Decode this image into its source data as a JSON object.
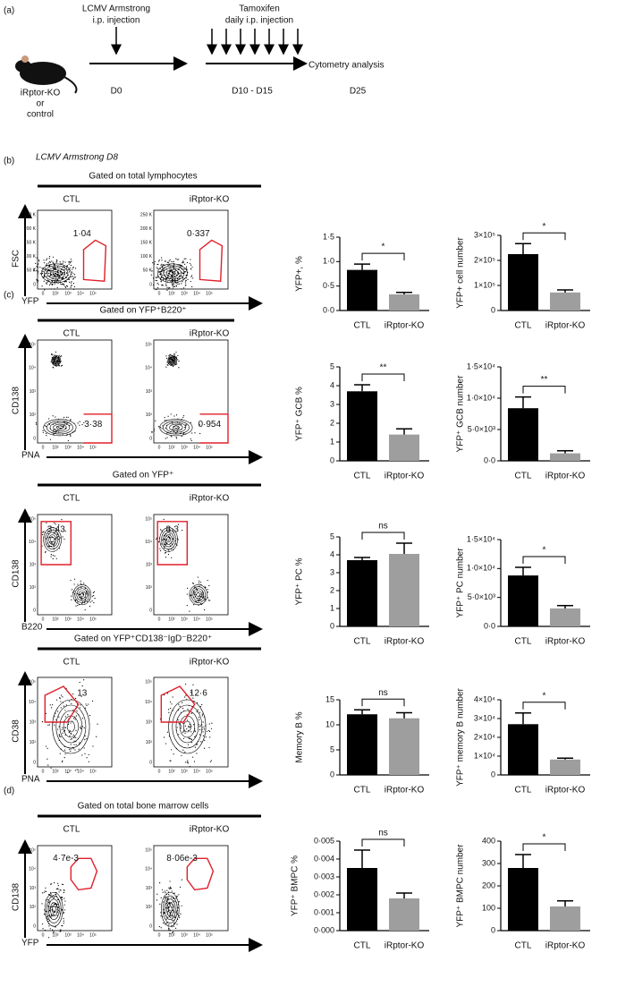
{
  "panel_a": {
    "label": "(a)",
    "mouse_labels": [
      "iRptor-KO",
      "or",
      "control"
    ],
    "step1": [
      "LCMV Armstrong",
      "i.p. injection"
    ],
    "step2": [
      "Tamoxifen",
      "daily i.p. injection"
    ],
    "endpoint": "Cytometry analysis",
    "days": [
      "D0",
      "D10 - D15",
      "D25"
    ]
  },
  "flow_rows": [
    {
      "panel_label": "(b)",
      "subtitle": "LCMV Armstrong D8",
      "gate": "Gated on total lymphocytes",
      "groups": [
        "CTL",
        "iRptor-KO"
      ],
      "gate_values": [
        "1·04",
        "0·337"
      ],
      "ylabel": "FSC",
      "xlabel": "YFP",
      "yticks": [
        "250 K",
        "200 K",
        "150 K",
        "100 K",
        "50 K",
        "0"
      ],
      "xticks": [
        "0",
        "10²",
        "10³",
        "10⁴",
        "10⁵"
      ]
    },
    {
      "panel_label": "(c)",
      "gate": "Gated on YFP⁺B220⁺",
      "groups": [
        "CTL",
        "iRptor-KO"
      ],
      "gate_values": [
        "3·38",
        "0·954"
      ],
      "ylabel": "CD138",
      "xlabel": "PNA",
      "yticks": [
        "10⁵",
        "10⁴",
        "10³",
        "10²",
        "0"
      ],
      "xticks": [
        "0",
        "10²",
        "10³",
        "10⁴",
        "10⁵"
      ]
    },
    {
      "gate": "Gated on YFP⁺",
      "groups": [
        "CTL",
        "iRptor-KO"
      ],
      "gate_values": [
        "3·43",
        "3·3"
      ],
      "ylabel": "CD138",
      "xlabel": "B220",
      "yticks": [
        "10⁵",
        "10⁴",
        "10³",
        "10²",
        "0"
      ],
      "xticks": [
        "0",
        "10²",
        "10³",
        "10⁴",
        "10⁵"
      ]
    },
    {
      "gate": "Gated on YFP⁺CD138⁻IgD⁻B220⁺",
      "groups": [
        "CTL",
        "iRptor-KO"
      ],
      "gate_values": [
        "13",
        "12·6"
      ],
      "ylabel": "CD38",
      "xlabel": "PNA",
      "yticks": [
        "10⁵",
        "10⁴",
        "10³",
        "10²",
        "0"
      ],
      "xticks": [
        "0",
        "10²",
        "10³",
        "10⁴",
        "10⁵"
      ]
    },
    {
      "panel_label": "(d)",
      "gate": "Gated on total bone marrow cells",
      "groups": [
        "CTL",
        "iRptor-KO"
      ],
      "gate_values": [
        "4·7e-3",
        "8·06e-3"
      ],
      "ylabel": "CD138",
      "xlabel": "YFP",
      "yticks": [
        "10⁵",
        "10⁴",
        "10³",
        "10²",
        "0"
      ],
      "xticks": [
        "0",
        "10²",
        "10³",
        "10⁴",
        "10⁵"
      ]
    }
  ],
  "chart_data": [
    {
      "type": "bar",
      "ylabel": "YFP+, %",
      "categories": [
        "CTL",
        "iRptor-KO"
      ],
      "values": [
        0.83,
        0.33
      ],
      "errors": [
        0.12,
        0.04
      ],
      "colors": [
        "#000000",
        "#9e9e9e"
      ],
      "significance": "*",
      "ylim": [
        0,
        1.5
      ],
      "yticks": [
        {
          "value": 0,
          "label": "0·0"
        },
        {
          "value": 0.5,
          "label": "0·5"
        },
        {
          "value": 1,
          "label": "1·0"
        },
        {
          "value": 1.5,
          "label": "1·5"
        }
      ]
    },
    {
      "type": "bar",
      "ylabel": "YFP+ cell number",
      "categories": [
        "CTL",
        "iRptor-KO"
      ],
      "values": [
        225000,
        72000
      ],
      "errors": [
        42000,
        10000
      ],
      "colors": [
        "#000000",
        "#9e9e9e"
      ],
      "significance": "*",
      "ylim": [
        0,
        300000
      ],
      "yticks": [
        0,
        {
          "value": 100000,
          "label": "1×10⁵"
        },
        {
          "value": 200000,
          "label": "2×10⁵"
        },
        {
          "value": 300000,
          "label": "3×10⁵"
        }
      ]
    },
    {
      "type": "bar",
      "ylabel": "YFP⁺ GCB %",
      "categories": [
        "CTL",
        "iRptor-KO"
      ],
      "values": [
        3.7,
        1.4
      ],
      "errors": [
        0.35,
        0.3
      ],
      "colors": [
        "#000000",
        "#9e9e9e"
      ],
      "significance": "**",
      "ylim": [
        0,
        5
      ],
      "yticks": [
        0,
        1,
        2,
        3,
        4,
        5
      ]
    },
    {
      "type": "bar",
      "ylabel": "YFP⁺ GCB number",
      "categories": [
        "CTL",
        "iRptor-KO"
      ],
      "values": [
        8400,
        1200
      ],
      "errors": [
        1800,
        400
      ],
      "colors": [
        "#000000",
        "#9e9e9e"
      ],
      "significance": "**",
      "ylim": [
        0,
        15000
      ],
      "yticks": [
        {
          "value": 0,
          "label": "0·0"
        },
        {
          "value": 5000,
          "label": "5·0×10³"
        },
        {
          "value": 10000,
          "label": "1·0×10⁴"
        },
        {
          "value": 15000,
          "label": "1·5×10⁴"
        }
      ]
    },
    {
      "type": "bar",
      "ylabel": "YFP⁺ PC %",
      "categories": [
        "CTL",
        "iRptor-KO"
      ],
      "values": [
        3.7,
        4.05
      ],
      "errors": [
        0.15,
        0.6
      ],
      "colors": [
        "#000000",
        "#9e9e9e"
      ],
      "significance": "ns",
      "ylim": [
        0,
        5
      ],
      "yticks": [
        0,
        1,
        2,
        3,
        4,
        5
      ]
    },
    {
      "type": "bar",
      "ylabel": "YFP⁺ PC number",
      "categories": [
        "CTL",
        "iRptor-KO"
      ],
      "values": [
        8800,
        3100
      ],
      "errors": [
        1400,
        500
      ],
      "colors": [
        "#000000",
        "#9e9e9e"
      ],
      "significance": "*",
      "ylim": [
        0,
        15000
      ],
      "yticks": [
        {
          "value": 0,
          "label": "0·0"
        },
        {
          "value": 5000,
          "label": "5·0×10³"
        },
        {
          "value": 10000,
          "label": "1·0×10⁴"
        },
        {
          "value": 15000,
          "label": "1·5×10⁴"
        }
      ]
    },
    {
      "type": "bar",
      "ylabel": "Memory B %",
      "categories": [
        "CTL",
        "iRptor-KO"
      ],
      "values": [
        12.1,
        11.3
      ],
      "errors": [
        0.9,
        1.1
      ],
      "colors": [
        "#000000",
        "#9e9e9e"
      ],
      "significance": "ns",
      "ylim": [
        0,
        15
      ],
      "yticks": [
        0,
        5,
        10,
        15
      ]
    },
    {
      "type": "bar",
      "ylabel": "YFP⁺ memory B number",
      "categories": [
        "CTL",
        "iRptor-KO"
      ],
      "values": [
        27000,
        8200
      ],
      "errors": [
        6000,
        700
      ],
      "colors": [
        "#000000",
        "#9e9e9e"
      ],
      "significance": "*",
      "ylim": [
        0,
        40000
      ],
      "yticks": [
        0,
        {
          "value": 10000,
          "label": "1×10⁴"
        },
        {
          "value": 20000,
          "label": "2×10⁴"
        },
        {
          "value": 30000,
          "label": "3×10⁴"
        },
        {
          "value": 40000,
          "label": "4×10⁴"
        }
      ]
    },
    {
      "type": "bar",
      "ylabel": "YFP⁺ BMPC %",
      "categories": [
        "CTL",
        "iRptor-KO"
      ],
      "values": [
        0.0035,
        0.0018
      ],
      "errors": [
        0.001,
        0.0003
      ],
      "colors": [
        "#000000",
        "#9e9e9e"
      ],
      "significance": "ns",
      "ylim": [
        0,
        0.005
      ],
      "yticks": [
        {
          "value": 0,
          "label": "0·000"
        },
        {
          "value": 0.001,
          "label": "0·001"
        },
        {
          "value": 0.002,
          "label": "0·002"
        },
        {
          "value": 0.003,
          "label": "0·003"
        },
        {
          "value": 0.004,
          "label": "0·004"
        },
        {
          "value": 0.005,
          "label": "0·005"
        }
      ]
    },
    {
      "type": "bar",
      "ylabel": "YFP⁺ BMPC number",
      "categories": [
        "CTL",
        "iRptor-KO"
      ],
      "values": [
        280,
        108
      ],
      "errors": [
        60,
        25
      ],
      "colors": [
        "#000000",
        "#9e9e9e"
      ],
      "significance": "*",
      "ylim": [
        0,
        400
      ],
      "yticks": [
        0,
        100,
        200,
        300,
        400
      ]
    }
  ]
}
